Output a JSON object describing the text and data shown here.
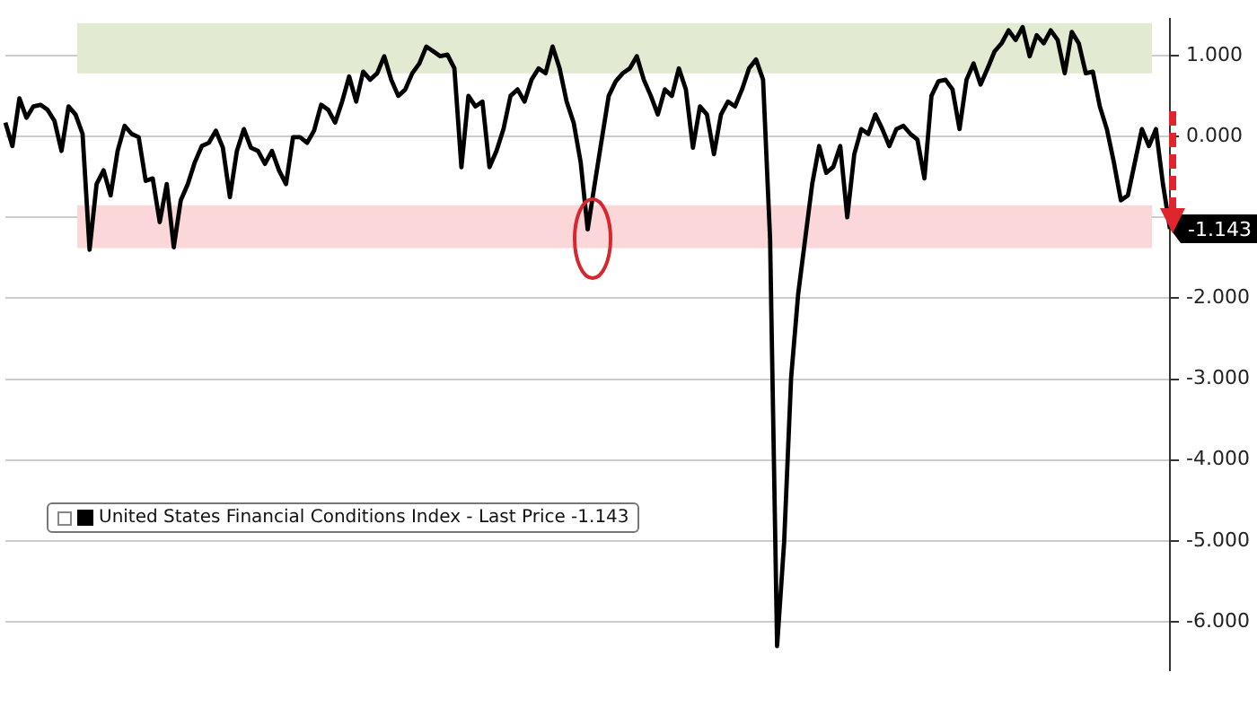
{
  "chart_data": {
    "type": "line",
    "categories": [
      null,
      null,
      null,
      null,
      null,
      null,
      null,
      null,
      null,
      null,
      null,
      null,
      null,
      null,
      null,
      null,
      null,
      null,
      null,
      null,
      null,
      null,
      null,
      null,
      null,
      null,
      null,
      null,
      null,
      null,
      null,
      null,
      null,
      null,
      null,
      null,
      null,
      null,
      null,
      null,
      null,
      null,
      null,
      null,
      null,
      null,
      null,
      null,
      null,
      null,
      null,
      null,
      null,
      null,
      null,
      null,
      null,
      null,
      null,
      null,
      null,
      null,
      null,
      null,
      null,
      null,
      null,
      null,
      null,
      null,
      null,
      null,
      null,
      null,
      null,
      null,
      null,
      null,
      null,
      null,
      null,
      null,
      null,
      null,
      null,
      null,
      null,
      null,
      null,
      null,
      null,
      null,
      null,
      null,
      null,
      null,
      null,
      null,
      null,
      null,
      null,
      null,
      null,
      null,
      null,
      null,
      null,
      null,
      null,
      null,
      null,
      null,
      null,
      null,
      null,
      null,
      null,
      null,
      null,
      null,
      null,
      null,
      null,
      null,
      null,
      null,
      null,
      null,
      null,
      null,
      null,
      null,
      null,
      null,
      null,
      null,
      null,
      null,
      null,
      null,
      null,
      null,
      null,
      null,
      null,
      null,
      null,
      null,
      null,
      null,
      null,
      null,
      null,
      null,
      null,
      null,
      null,
      null,
      null,
      null,
      null,
      null,
      null,
      null,
      null,
      null,
      null
    ],
    "series": [
      {
        "name": "United States Financial Conditions Index - Last Price -1.143",
        "color": "#000000",
        "values": [
          0.17,
          -0.12,
          0.47,
          0.23,
          0.37,
          0.39,
          0.33,
          0.19,
          -0.18,
          0.37,
          0.27,
          0.03,
          -1.4,
          -0.59,
          -0.42,
          -0.73,
          -0.18,
          0.13,
          0.03,
          -0.01,
          -0.55,
          -0.52,
          -1.06,
          -0.59,
          -1.37,
          -0.79,
          -0.59,
          -0.32,
          -0.12,
          -0.08,
          0.07,
          -0.14,
          -0.75,
          -0.18,
          0.09,
          -0.14,
          -0.18,
          -0.34,
          -0.18,
          -0.42,
          -0.59,
          -0.01,
          -0.01,
          -0.08,
          0.07,
          0.39,
          0.33,
          0.17,
          0.43,
          0.74,
          0.43,
          0.8,
          0.7,
          0.78,
          0.99,
          0.7,
          0.5,
          0.58,
          0.78,
          0.9,
          1.11,
          1.05,
          0.99,
          1.01,
          0.84,
          -0.38,
          0.5,
          0.37,
          0.43,
          -0.38,
          -0.18,
          0.09,
          0.5,
          0.58,
          0.43,
          0.7,
          0.84,
          0.78,
          1.11,
          0.84,
          0.43,
          0.17,
          -0.32,
          -1.15,
          -0.59,
          -0.04,
          0.5,
          0.68,
          0.78,
          0.84,
          0.99,
          0.7,
          0.5,
          0.27,
          0.58,
          0.5,
          0.84,
          0.58,
          -0.14,
          0.37,
          0.27,
          -0.22,
          0.27,
          0.43,
          0.37,
          0.58,
          0.84,
          0.95,
          0.7,
          -1.27,
          -6.3,
          -5.02,
          -2.98,
          -1.95,
          -1.27,
          -0.59,
          -0.12,
          -0.45,
          -0.38,
          -0.12,
          -1.0,
          -0.22,
          0.09,
          0.03,
          0.27,
          0.09,
          -0.12,
          0.09,
          0.13,
          0.03,
          -0.04,
          -0.52,
          0.5,
          0.68,
          0.7,
          0.58,
          0.09,
          0.7,
          0.9,
          0.64,
          0.84,
          1.05,
          1.15,
          1.31,
          1.19,
          1.35,
          0.99,
          1.25,
          1.15,
          1.31,
          1.19,
          0.78,
          1.29,
          1.15,
          0.78,
          0.8,
          0.37,
          0.09,
          -0.32,
          -0.79,
          -0.73,
          -0.32,
          0.09,
          -0.12,
          0.09,
          -0.59,
          -1.143
        ]
      }
    ],
    "ylim": [
      -6.6,
      1.45
    ],
    "yticks": [
      {
        "value": 1,
        "label": "1.000"
      },
      {
        "value": 0,
        "label": "0.000"
      },
      {
        "value": -1,
        "label": null
      },
      {
        "value": -2,
        "label": "-2.000"
      },
      {
        "value": -3,
        "label": "-3.000"
      },
      {
        "value": -4,
        "label": "-4.000"
      },
      {
        "value": -5,
        "label": "-5.000"
      },
      {
        "value": -6,
        "label": "-6.000"
      }
    ],
    "bands": [
      {
        "axis": "y",
        "from": 0.78,
        "to": 1.4,
        "color": "#e2ebd2"
      },
      {
        "axis": "y",
        "from": -1.38,
        "to": -0.85,
        "color": "#fcd7da"
      }
    ],
    "annotations": [
      "-1.143"
    ],
    "grid": "y",
    "legend": "bottom left",
    "marker": "none",
    "line_style": "solid"
  }
}
